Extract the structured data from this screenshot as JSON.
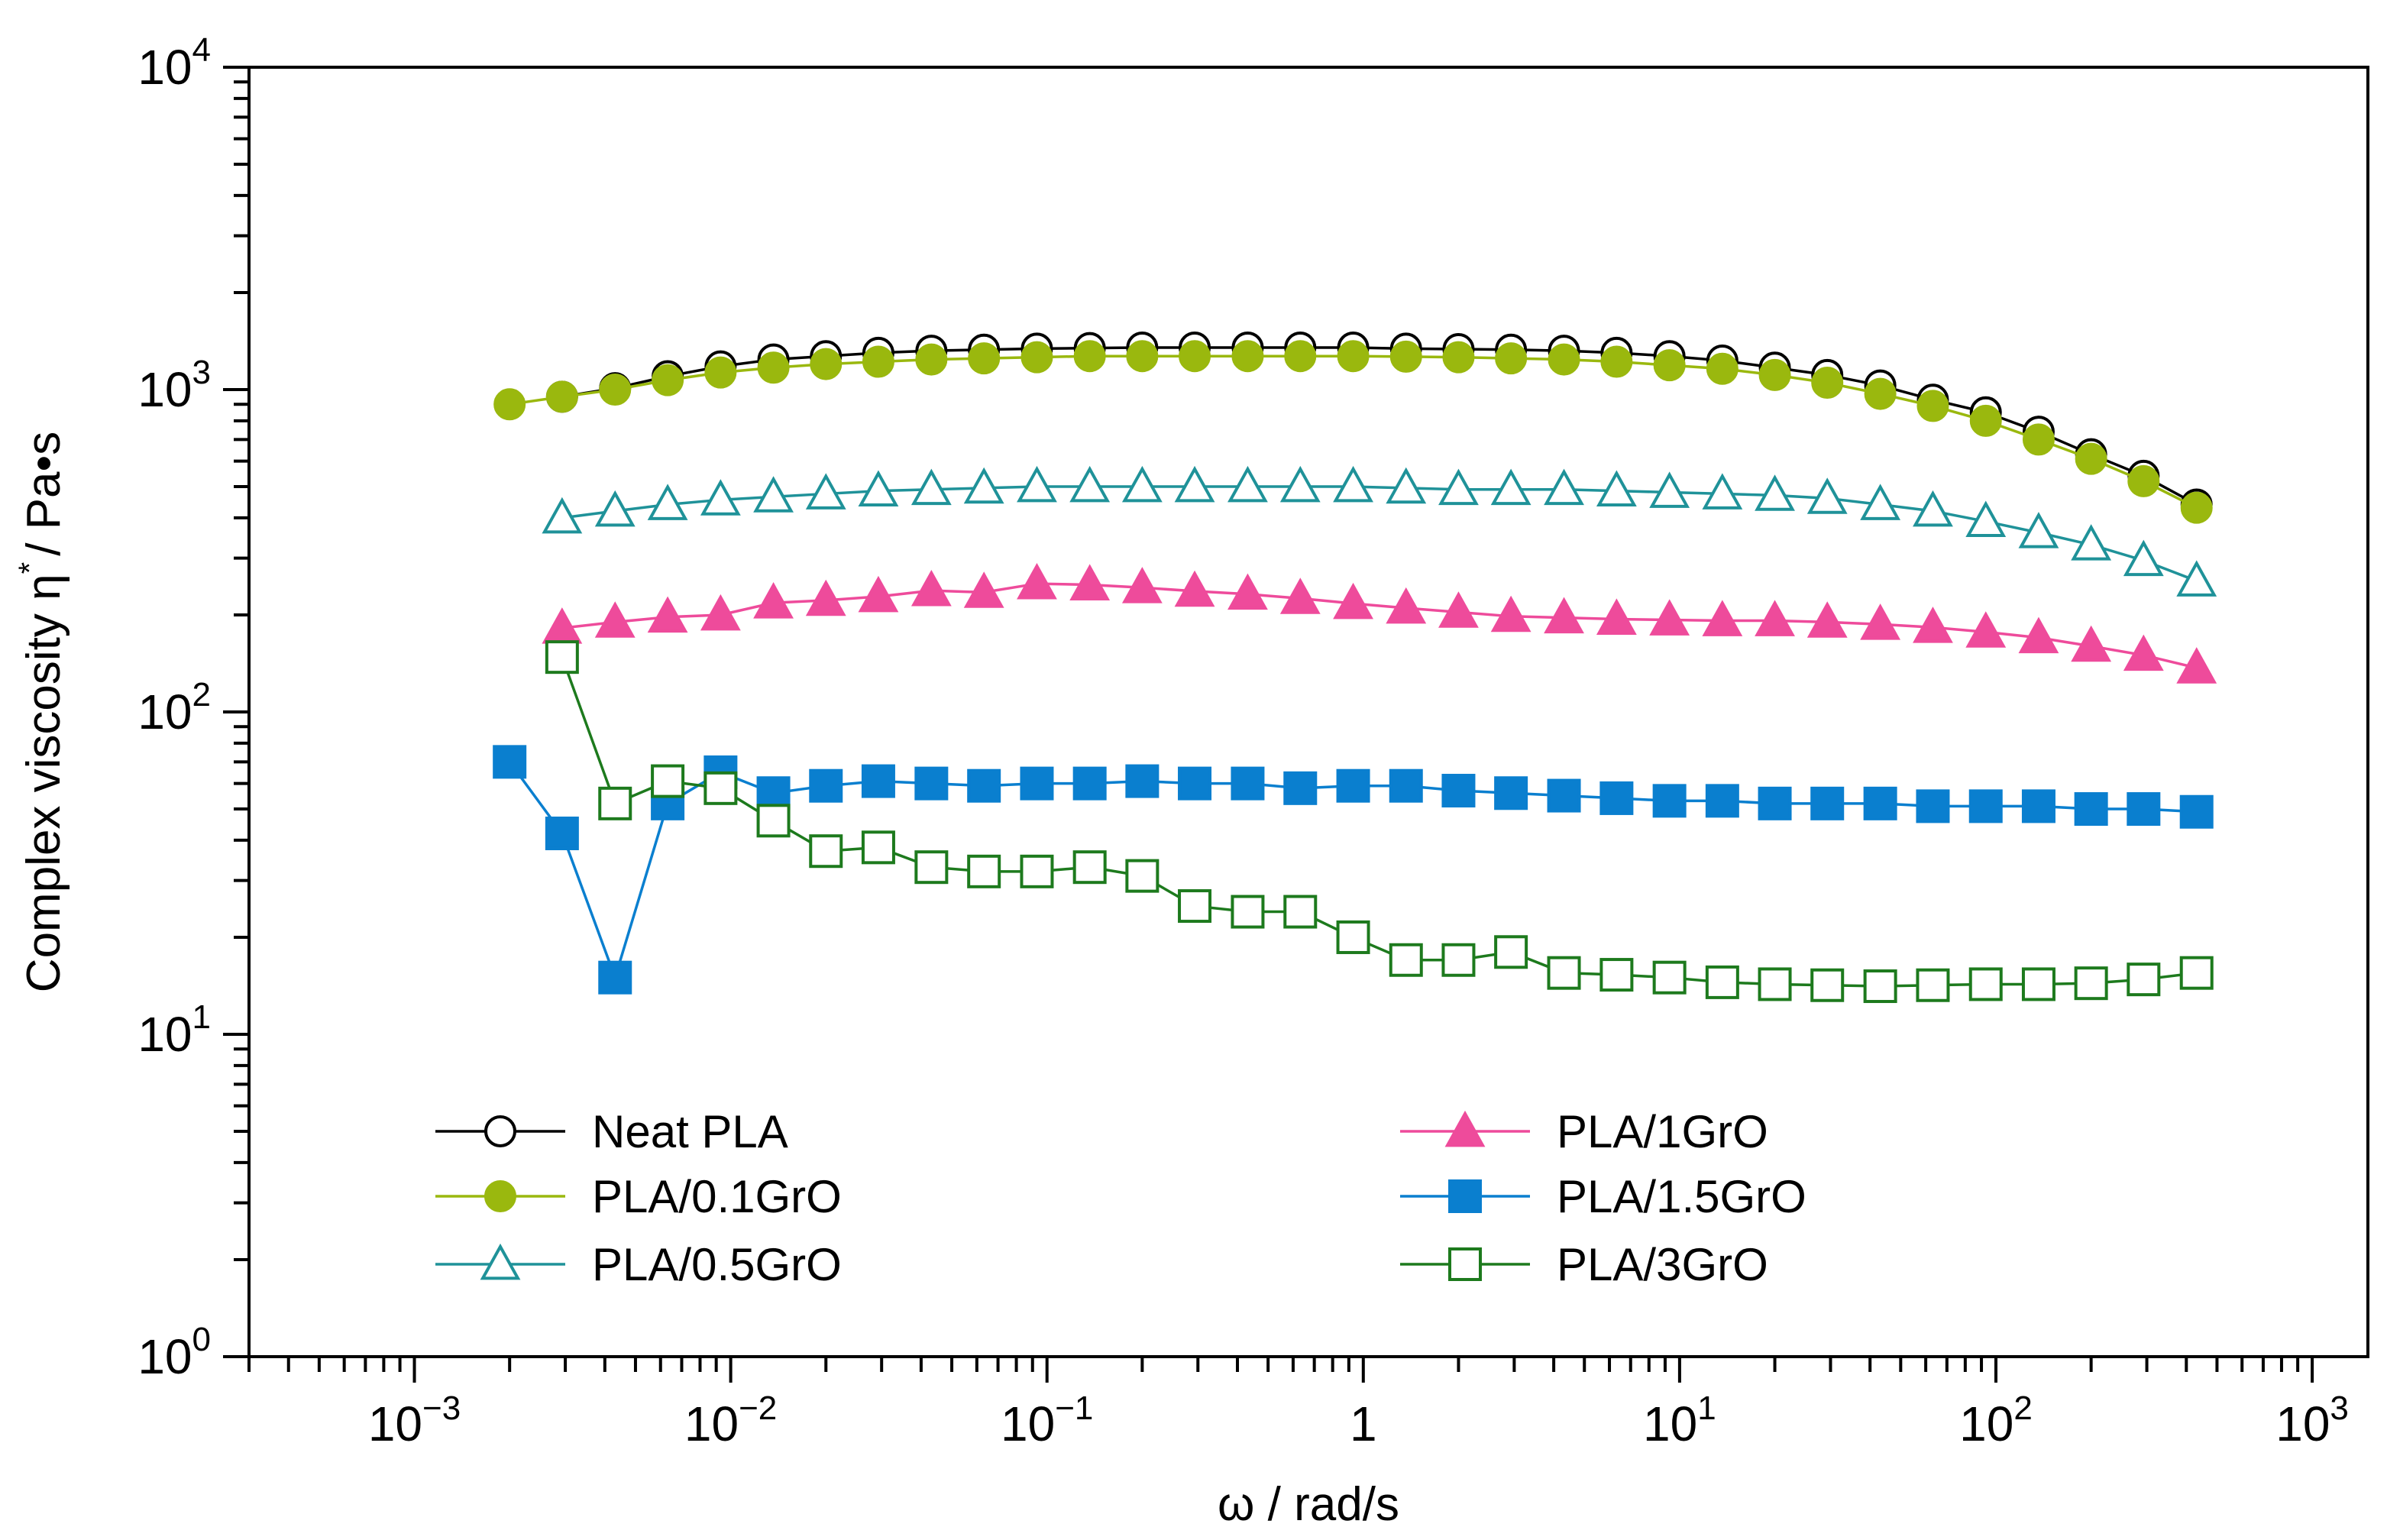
{
  "chart_data": {
    "type": "line",
    "scale": {
      "x": "log",
      "y": "log"
    },
    "xlim": [
      0.0003,
      1500
    ],
    "ylim": [
      1,
      10000
    ],
    "xlabel": "ω / rad/s",
    "ylabel": "Complex viscosity η* / Pa•s",
    "ylabel_main": "Complex viscosity η",
    "ylabel_sup": "*",
    "ylabel_units": "/ Pa•s",
    "x_ticks": [
      {
        "value": 0.001,
        "base": "10",
        "exp": "−3"
      },
      {
        "value": 0.01,
        "base": "10",
        "exp": "−2"
      },
      {
        "value": 0.1,
        "base": "10",
        "exp": "−1"
      },
      {
        "value": 1,
        "base": "1",
        "exp": ""
      },
      {
        "value": 10,
        "base": "10",
        "exp": "1"
      },
      {
        "value": 100,
        "base": "10",
        "exp": "2"
      },
      {
        "value": 1000,
        "base": "10",
        "exp": "3"
      }
    ],
    "y_ticks": [
      {
        "value": 1,
        "base": "10",
        "exp": "0"
      },
      {
        "value": 10,
        "base": "10",
        "exp": "1"
      },
      {
        "value": 100,
        "base": "10",
        "exp": "2"
      },
      {
        "value": 1000,
        "base": "10",
        "exp": "3"
      },
      {
        "value": 10000,
        "base": "10",
        "exp": "4"
      }
    ],
    "legend_position": "bottom-left, two columns",
    "series": [
      {
        "name": "Neat PLA",
        "color": "#000000",
        "marker": "circle",
        "filled": false,
        "x": [
          0.00293,
          0.00431,
          0.00632,
          0.00929,
          0.01365,
          0.02,
          0.0293,
          0.0431,
          0.0632,
          0.0929,
          0.1365,
          0.2,
          0.293,
          0.431,
          0.632,
          0.929,
          1.365,
          2,
          2.93,
          4.31,
          6.32,
          9.29,
          13.65,
          20,
          29.3,
          43.1,
          63.2,
          92.9,
          136.5,
          200,
          293,
          431
        ],
        "y": [
          950,
          1010,
          1100,
          1180,
          1240,
          1270,
          1300,
          1320,
          1330,
          1340,
          1345,
          1350,
          1350,
          1350,
          1350,
          1350,
          1340,
          1335,
          1330,
          1320,
          1300,
          1270,
          1230,
          1170,
          1110,
          1030,
          930,
          850,
          740,
          630,
          540,
          440
        ]
      },
      {
        "name": "PLA/0.1GrO",
        "color": "#9ab80e",
        "marker": "circle",
        "filled": true,
        "x": [
          0.002,
          0.00293,
          0.00431,
          0.00632,
          0.00929,
          0.01365,
          0.02,
          0.0293,
          0.0431,
          0.0632,
          0.0929,
          0.1365,
          0.2,
          0.293,
          0.431,
          0.632,
          0.929,
          1.365,
          2,
          2.93,
          4.31,
          6.32,
          9.29,
          13.65,
          20,
          29.3,
          43.1,
          63.2,
          92.9,
          136.5,
          200,
          293,
          431
        ],
        "y": [
          900,
          950,
          1000,
          1070,
          1130,
          1170,
          1200,
          1220,
          1240,
          1250,
          1260,
          1270,
          1270,
          1270,
          1270,
          1270,
          1270,
          1265,
          1260,
          1250,
          1240,
          1220,
          1190,
          1160,
          1110,
          1050,
          970,
          890,
          800,
          700,
          610,
          520,
          430
        ]
      },
      {
        "name": "PLA/0.5GrO",
        "color": "#1f9299",
        "marker": "triangle",
        "filled": false,
        "x": [
          0.00293,
          0.00431,
          0.00632,
          0.00929,
          0.01365,
          0.02,
          0.0293,
          0.0431,
          0.0632,
          0.0929,
          0.1365,
          0.2,
          0.293,
          0.431,
          0.632,
          0.929,
          1.365,
          2,
          2.93,
          4.31,
          6.32,
          9.29,
          13.65,
          20,
          29.3,
          43.1,
          63.2,
          92.9,
          136.5,
          200,
          293,
          431
        ],
        "y": [
          400,
          420,
          440,
          455,
          465,
          475,
          485,
          490,
          495,
          500,
          500,
          500,
          500,
          500,
          500,
          500,
          495,
          490,
          490,
          490,
          485,
          480,
          475,
          470,
          460,
          440,
          420,
          390,
          360,
          330,
          295,
          255
        ]
      },
      {
        "name": "PLA/1GrO",
        "color": "#ee4b9b",
        "marker": "triangle",
        "filled": true,
        "x": [
          0.00293,
          0.00431,
          0.00632,
          0.00929,
          0.01365,
          0.02,
          0.0293,
          0.0431,
          0.0632,
          0.0929,
          0.1365,
          0.2,
          0.293,
          0.431,
          0.632,
          0.929,
          1.365,
          2,
          2.93,
          4.31,
          6.32,
          9.29,
          13.65,
          20,
          29.3,
          43.1,
          63.2,
          92.9,
          136.5,
          200,
          293,
          431
        ],
        "y": [
          182,
          190,
          197,
          200,
          218,
          222,
          228,
          238,
          235,
          250,
          248,
          243,
          237,
          232,
          225,
          217,
          210,
          204,
          198,
          196,
          194,
          193,
          192,
          192,
          190,
          187,
          183,
          177,
          170,
          160,
          150,
          137
        ]
      },
      {
        "name": "PLA/1.5GrO",
        "color": "#0a7fcf",
        "marker": "square",
        "filled": true,
        "x": [
          0.002,
          0.00293,
          0.00431,
          0.00632,
          0.00929,
          0.01365,
          0.02,
          0.0293,
          0.0431,
          0.0632,
          0.0929,
          0.1365,
          0.2,
          0.293,
          0.431,
          0.632,
          0.929,
          1.365,
          2,
          2.93,
          4.31,
          6.32,
          9.29,
          13.65,
          20,
          29.3,
          43.1,
          63.2,
          92.9,
          136.5,
          200,
          293,
          431
        ],
        "y": [
          70,
          42,
          15,
          52,
          65,
          56,
          59,
          61,
          60,
          59,
          60,
          60,
          61,
          60,
          60,
          58,
          59,
          59,
          57,
          56,
          55,
          54,
          53,
          53,
          52,
          52,
          52,
          51,
          51,
          51,
          50,
          50,
          49
        ]
      },
      {
        "name": "PLA/3GrO",
        "color": "#1d7a1d",
        "marker": "square",
        "filled": false,
        "x": [
          0.00293,
          0.00431,
          0.00632,
          0.00929,
          0.01365,
          0.02,
          0.0293,
          0.0431,
          0.0632,
          0.0929,
          0.1365,
          0.2,
          0.293,
          0.431,
          0.632,
          0.929,
          1.365,
          2,
          2.93,
          4.31,
          6.32,
          9.29,
          13.65,
          20,
          29.3,
          43.1,
          63.2,
          92.9,
          136.5,
          200,
          293,
          431
        ],
        "y": [
          148,
          52,
          61,
          58,
          46,
          37,
          38,
          33,
          32,
          32,
          33,
          31,
          25,
          24,
          24,
          20,
          17,
          17,
          18,
          15.5,
          15.3,
          15,
          14.5,
          14.3,
          14.2,
          14.1,
          14.2,
          14.3,
          14.3,
          14.4,
          14.8,
          15.5
        ]
      }
    ]
  }
}
